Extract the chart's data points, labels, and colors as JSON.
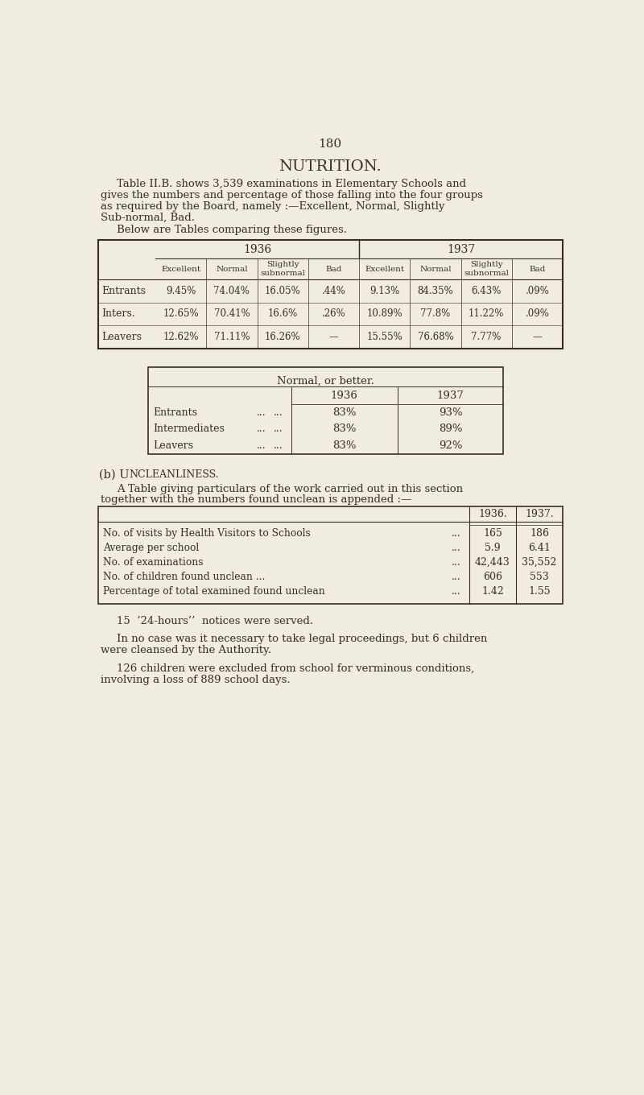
{
  "bg_color": "#f0ece0",
  "text_color": "#3a2e1e",
  "page_num": "180",
  "title": "NUTRITION.",
  "para1_lines": [
    "Table II.B. shows 3,539 examinations in Elementary Schools and",
    "gives the numbers and percentage of those falling into the four groups",
    "as required by the Board, namely :—Excellent, Normal, Slightly",
    "Sub-normal, Bad."
  ],
  "para2": "Below are Tables comparing these figures.",
  "table1": {
    "year_headers": [
      "1936",
      "1937"
    ],
    "col_headers": [
      "Excellent",
      "Normal",
      "Slightly\nsubnormal",
      "Bad",
      "Excellent",
      "Normal",
      "Slightly\nsubnormal",
      "Bad"
    ],
    "row_labels": [
      "Entrants",
      "Inters.",
      "Leavers"
    ],
    "data": [
      [
        "9.45%",
        "74.04%",
        "16.05%",
        ".44%",
        "9.13%",
        "84.35%",
        "6.43%",
        ".09%"
      ],
      [
        "12.65%",
        "70.41%",
        "16.6%",
        ".26%",
        "10.89%",
        "77.8%",
        "11.22%",
        ".09%"
      ],
      [
        "12.62%",
        "71.11%",
        "16.26%",
        "—",
        "15.55%",
        "76.68%",
        "7.77%",
        "—"
      ]
    ]
  },
  "table2": {
    "title": "Normal, or better.",
    "col_headers": [
      "1936",
      "1937"
    ],
    "row_labels": [
      "Entrants",
      "Intermediates",
      "Leavers"
    ],
    "row_dots1": [
      "...",
      "...",
      "..."
    ],
    "row_dots2": [
      "...",
      "...",
      "..."
    ],
    "data": [
      [
        "83%",
        "93%"
      ],
      [
        "83%",
        "89%"
      ],
      [
        "83%",
        "92%"
      ]
    ]
  },
  "section_b_head1": "(b) U",
  "section_b_head2": "NCLEANLINESS.",
  "section_b_para1": "A Table giving particulars of the work carried out in this section",
  "section_b_para2": "together with the numbers found unclean is appended :—",
  "table3": {
    "col_headers": [
      "1936.",
      "1937."
    ],
    "rows": [
      [
        "No. of visits by Health Visitors to Schools",
        "...",
        "165",
        "186"
      ],
      [
        "Average per school",
        "...",
        "5.9",
        "6.41"
      ],
      [
        "No. of examinations",
        "...",
        "42,443",
        "35,552"
      ],
      [
        "No. of children found unclean ...",
        "...",
        "606",
        "553"
      ],
      [
        "Percentage of total examined found unclean",
        "...",
        "1.42",
        "1.55"
      ]
    ]
  },
  "para3": "15  ’24-hours’’  notices were served.",
  "para4_lines": [
    "In no case was it necessary to take legal proceedings, but 6 children",
    "were cleansed by the Authority."
  ],
  "para5_lines": [
    "126 children were excluded from school for verminous conditions,",
    "involving a loss of 889 school days."
  ]
}
